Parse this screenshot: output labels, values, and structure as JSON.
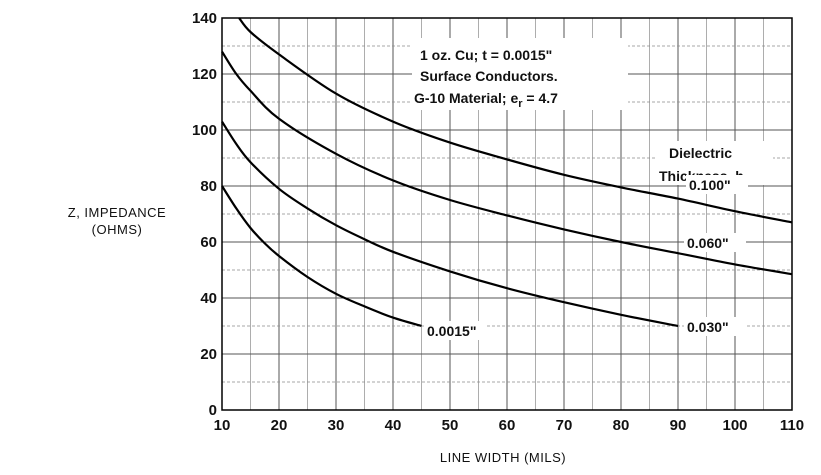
{
  "chart_data": {
    "type": "line",
    "title": "",
    "xlabel": "LINE WIDTH (MILS)",
    "ylabel_line1": "Z, IMPEDANCE",
    "ylabel_line2": "(OHMS)",
    "xlim": [
      10,
      110
    ],
    "ylim": [
      0,
      140
    ],
    "xticks": [
      10,
      20,
      30,
      40,
      50,
      60,
      70,
      80,
      90,
      100,
      110
    ],
    "yticks": [
      0,
      20,
      40,
      60,
      80,
      100,
      120,
      140
    ],
    "grid": true,
    "minor_grid_step_x": 5,
    "minor_grid_step_y": 10,
    "annotations": {
      "line1": "1 oz. Cu; t = 0.0015\"",
      "line2": "Surface Conductors.",
      "line3_prefix": "G-10 Material; e",
      "line3_sub": "r",
      "line3_suffix": " = 4.7",
      "legend_title_line1": "Dielectric",
      "legend_title_line2": "Thickness, h"
    },
    "series": [
      {
        "name": "0.0015\"",
        "x": [
          10,
          12.5,
          15,
          17.5,
          20,
          25,
          30,
          35,
          40,
          45
        ],
        "y": [
          80,
          72,
          65,
          59.5,
          55,
          47.5,
          41.5,
          37,
          33,
          30
        ]
      },
      {
        "name": "0.030\"",
        "x": [
          10,
          12.5,
          15,
          20,
          25,
          30,
          35,
          40,
          50,
          60,
          70,
          80,
          90
        ],
        "y": [
          103,
          95,
          88.5,
          79,
          72,
          66,
          61,
          56.5,
          49.5,
          43.5,
          38.5,
          34,
          30
        ]
      },
      {
        "name": "0.060\"",
        "x": [
          10,
          12.5,
          15,
          20,
          30,
          40,
          50,
          60,
          70,
          80,
          90,
          100,
          110
        ],
        "y": [
          128,
          120,
          114,
          104,
          91.5,
          82,
          75,
          69.5,
          64.5,
          60,
          56,
          52,
          48.5
        ]
      },
      {
        "name": "0.100\"",
        "x": [
          13,
          15,
          20,
          30,
          40,
          50,
          60,
          70,
          80,
          90,
          100,
          110
        ],
        "y": [
          140,
          135,
          127,
          113,
          103,
          95.5,
          89.5,
          84,
          79.5,
          75.5,
          71,
          67
        ]
      }
    ]
  }
}
